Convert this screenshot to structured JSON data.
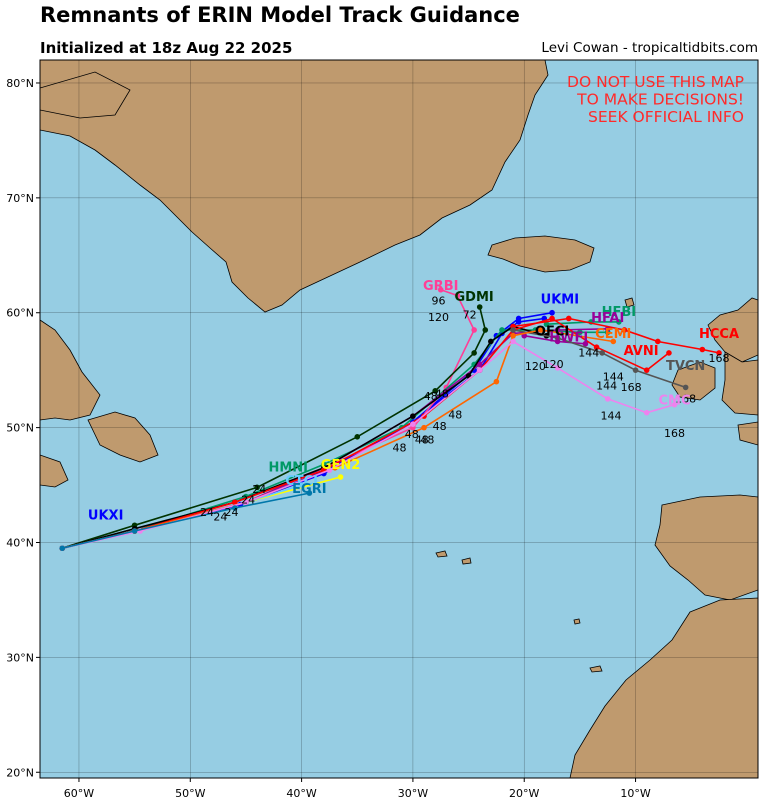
{
  "header": {
    "title": "Remnants of ERIN Model Track Guidance",
    "initialized": "Initialized at 18z Aug 22 2025",
    "credit": "Levi Cowan - tropicaltidbits.com"
  },
  "warning": [
    "DO NOT USE THIS MAP",
    "TO MAKE DECISIONS!",
    "SEEK OFFICIAL INFO"
  ],
  "colors": {
    "ocean": "#96cde3",
    "land": "#bf9a6e",
    "warning": "#ff2a2a"
  },
  "chart_data": {
    "type": "map",
    "lon_range": [
      -63.5,
      1
    ],
    "lat_range": [
      19.5,
      82
    ],
    "lon_ticks": [
      {
        "v": -60,
        "label": "60°W"
      },
      {
        "v": -50,
        "label": "50°W"
      },
      {
        "v": -40,
        "label": "40°W"
      },
      {
        "v": -30,
        "label": "30°W"
      },
      {
        "v": -20,
        "label": "20°W"
      },
      {
        "v": -10,
        "label": "10°W"
      }
    ],
    "lat_ticks": [
      {
        "v": 20,
        "label": "20°N"
      },
      {
        "v": 30,
        "label": "30°N"
      },
      {
        "v": 40,
        "label": "40°N"
      },
      {
        "v": 50,
        "label": "50°N"
      },
      {
        "v": 60,
        "label": "60°N"
      },
      {
        "v": 70,
        "label": "70°N"
      },
      {
        "v": 80,
        "label": "80°N"
      }
    ],
    "grid": true,
    "tracks": [
      {
        "name": "UKXI",
        "color": "#0000ff",
        "label_at": [
          -57.6,
          42
        ],
        "points": [
          [
            -61.5,
            39.5
          ],
          [
            -55,
            41
          ],
          [
            -45,
            43.5
          ],
          [
            -38,
            46
          ],
          [
            -30,
            50.5
          ],
          [
            -24,
            55
          ],
          [
            -22,
            58.2
          ],
          [
            -20.5,
            59.2
          ],
          [
            -18.2,
            59.5
          ]
        ]
      },
      {
        "name": "UKMI",
        "color": "#0000ff",
        "label_at": [
          -16.8,
          60.8
        ],
        "points": [
          [
            -61.5,
            39.5
          ],
          [
            -55,
            41
          ],
          [
            -45.5,
            43.3
          ],
          [
            -38,
            46.2
          ],
          [
            -30,
            50.5
          ],
          [
            -24.5,
            55
          ],
          [
            -22.5,
            58
          ],
          [
            -20.5,
            59.5
          ],
          [
            -17.5,
            60
          ]
        ]
      },
      {
        "name": "GRBI",
        "color": "#ff3e96",
        "label_at": [
          -27.5,
          62
        ],
        "points": [
          [
            -61.5,
            39.5
          ],
          [
            -55,
            41
          ],
          [
            -46,
            43.5
          ],
          [
            -38,
            46.5
          ],
          [
            -30,
            50
          ],
          [
            -27,
            53.5
          ],
          [
            -24.5,
            58.5
          ],
          [
            -26,
            61.5
          ],
          [
            -27.5,
            62
          ]
        ]
      },
      {
        "name": "GDMI",
        "color": "#003300",
        "label_at": [
          -24.5,
          61
        ],
        "points": [
          [
            -61.5,
            39.5
          ],
          [
            -55,
            41.5
          ],
          [
            -44,
            44.8
          ],
          [
            -35,
            49.2
          ],
          [
            -28,
            53.2
          ],
          [
            -24.5,
            56.5
          ],
          [
            -23.5,
            58.5
          ],
          [
            -24,
            60.5
          ]
        ]
      },
      {
        "name": "HMNI",
        "color": "#009966",
        "label_at": [
          -41.2,
          46.2
        ],
        "points": [
          [
            -61.5,
            39.5
          ],
          [
            -55,
            41
          ],
          [
            -45,
            44
          ],
          [
            -38,
            46.8
          ],
          [
            -31,
            50
          ],
          [
            -24.5,
            55.5
          ],
          [
            -22,
            58.5
          ],
          [
            -19,
            58.5
          ],
          [
            -15,
            58.3
          ],
          [
            -12.5,
            58.3
          ]
        ]
      },
      {
        "name": "HFBI",
        "color": "#009966",
        "label_at": [
          -11.5,
          59.7
        ],
        "points": [
          [
            -18,
            59
          ],
          [
            -14,
            59.2
          ],
          [
            -11.5,
            59.2
          ]
        ]
      },
      {
        "name": "HFAI",
        "color": "#990099",
        "label_at": [
          -12.5,
          59.2
        ],
        "points": [
          [
            -61.5,
            39.5
          ],
          [
            -55,
            41
          ],
          [
            -45,
            43.5
          ],
          [
            -38,
            46.5
          ],
          [
            -30,
            51
          ],
          [
            -24,
            55.5
          ],
          [
            -21,
            58.2
          ],
          [
            -17,
            58.5
          ],
          [
            -12.5,
            58.6
          ]
        ]
      },
      {
        "name": "HWFI",
        "color": "#990099",
        "label_at": [
          -16,
          57.5
        ],
        "points": [
          [
            -20,
            58
          ],
          [
            -17,
            57.5
          ],
          [
            -14.5,
            57.3
          ]
        ]
      },
      {
        "name": "GEN2",
        "color": "#ffff00",
        "label_at": [
          -36.5,
          46.4
        ],
        "points": [
          [
            -61.5,
            39.5
          ],
          [
            -55,
            41
          ],
          [
            -45,
            43.5
          ],
          [
            -36.5,
            45.7
          ]
        ]
      },
      {
        "name": "CTCI",
        "color": "#66ccff",
        "label_at": [
          -40,
          45
        ],
        "points": [
          [
            -61.5,
            39.5
          ],
          [
            -55,
            41
          ],
          [
            -45,
            43.5
          ],
          [
            -40,
            45
          ]
        ]
      },
      {
        "name": "OFCI",
        "color": "#000000",
        "label_at": [
          -17.5,
          58
        ],
        "points": [
          [
            -61.5,
            39.5
          ],
          [
            -55,
            41.2
          ],
          [
            -46,
            43.5
          ],
          [
            -38,
            46.5
          ],
          [
            -30,
            51
          ],
          [
            -25,
            54.5
          ],
          [
            -23,
            57.5
          ],
          [
            -21,
            58.8
          ],
          [
            -18,
            58
          ]
        ]
      },
      {
        "name": "AVNI",
        "color": "#ff0000",
        "label_at": [
          -9.5,
          56.3
        ],
        "points": [
          [
            -61.5,
            39.5
          ],
          [
            -55,
            41
          ],
          [
            -46,
            43.5
          ],
          [
            -38,
            46.3
          ],
          [
            -29,
            51
          ],
          [
            -24,
            55
          ],
          [
            -21,
            58.5
          ],
          [
            -17.5,
            59.5
          ],
          [
            -13.5,
            57
          ],
          [
            -9,
            55
          ],
          [
            -7,
            56.5
          ]
        ]
      },
      {
        "name": "HCCA",
        "color": "#ff0000",
        "label_at": [
          -2.5,
          57.8
        ],
        "points": [
          [
            -21,
            58.8
          ],
          [
            -16,
            59.5
          ],
          [
            -11,
            58.5
          ],
          [
            -8,
            57.5
          ],
          [
            -4,
            56.8
          ],
          [
            -2.5,
            56.5
          ]
        ]
      },
      {
        "name": "TVCN",
        "color": "#555555",
        "label_at": [
          -5.5,
          55
        ],
        "points": [
          [
            -21,
            58.5
          ],
          [
            -17,
            57.8
          ],
          [
            -13,
            56.5
          ],
          [
            -10,
            55
          ],
          [
            -5.5,
            53.5
          ]
        ]
      },
      {
        "name": "CEMI",
        "color": "#ff6600",
        "label_at": [
          -12,
          57.8
        ],
        "points": [
          [
            -61.5,
            39.5
          ],
          [
            -55,
            41
          ],
          [
            -45,
            43.5
          ],
          [
            -37,
            46.5
          ],
          [
            -29,
            50
          ],
          [
            -22.5,
            54
          ],
          [
            -21,
            58
          ],
          [
            -18.5,
            58.5
          ],
          [
            -12,
            57.5
          ]
        ]
      },
      {
        "name": "CMC",
        "color": "#ee82ee",
        "label_at": [
          -6.5,
          52
        ],
        "points": [
          [
            -61.5,
            39.5
          ],
          [
            -54.5,
            41
          ],
          [
            -45,
            43.5
          ],
          [
            -37.5,
            46.3
          ],
          [
            -30,
            50.3
          ],
          [
            -24,
            55
          ],
          [
            -21,
            57.5
          ],
          [
            -17,
            55.2
          ],
          [
            -12.5,
            52.5
          ],
          [
            -9,
            51.3
          ],
          [
            -6.5,
            52
          ]
        ]
      },
      {
        "name": "EGRI",
        "color": "#0077aa",
        "label_at": [
          -39.3,
          44.3
        ],
        "points": [
          [
            -61.5,
            39.5
          ],
          [
            -55,
            41
          ],
          [
            -46,
            43
          ],
          [
            -39.3,
            44.3
          ]
        ]
      }
    ],
    "annotations": [
      {
        "text": "96",
        "at": [
          -27.7,
          60.7
        ]
      },
      {
        "text": "120",
        "at": [
          -27.7,
          59.3
        ]
      },
      {
        "text": "72",
        "at": [
          -24.9,
          59.5
        ]
      },
      {
        "text": "120",
        "at": [
          -19,
          55
        ]
      },
      {
        "text": "120",
        "at": [
          -17.4,
          55.2
        ]
      },
      {
        "text": "144",
        "at": [
          -12,
          54.1
        ]
      },
      {
        "text": "144",
        "at": [
          -12.6,
          53.3
        ]
      },
      {
        "text": "168",
        "at": [
          -10.4,
          53.2
        ]
      },
      {
        "text": "144",
        "at": [
          -14.2,
          56.2
        ]
      },
      {
        "text": "168",
        "at": [
          -2.5,
          55.7
        ]
      },
      {
        "text": "144",
        "at": [
          -12.2,
          50.7
        ]
      },
      {
        "text": "168",
        "at": [
          -6.5,
          49.2
        ]
      },
      {
        "text": "168",
        "at": [
          -5.5,
          52.2
        ]
      },
      {
        "text": "48",
        "at": [
          -28.4,
          52.4
        ]
      },
      {
        "text": "48",
        "at": [
          -27.4,
          52.6
        ]
      },
      {
        "text": "48",
        "at": [
          -26.2,
          50.8
        ]
      },
      {
        "text": "48",
        "at": [
          -27.6,
          49.8
        ]
      },
      {
        "text": "48",
        "at": [
          -30.1,
          49.1
        ]
      },
      {
        "text": "48",
        "at": [
          -29.2,
          48.6
        ]
      },
      {
        "text": "48",
        "at": [
          -28.7,
          48.6
        ]
      },
      {
        "text": "48",
        "at": [
          -31.2,
          47.9
        ]
      },
      {
        "text": "24",
        "at": [
          -48.5,
          42.3
        ]
      },
      {
        "text": "24",
        "at": [
          -47.3,
          41.9
        ]
      },
      {
        "text": "24",
        "at": [
          -46.3,
          42.3
        ]
      },
      {
        "text": "24",
        "at": [
          -44.8,
          43.4
        ]
      },
      {
        "text": "24",
        "at": [
          -43.8,
          44.3
        ]
      }
    ]
  }
}
